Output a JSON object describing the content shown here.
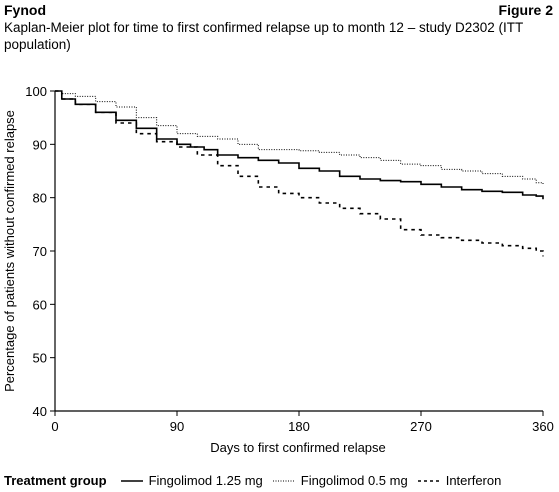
{
  "header": {
    "left": "Fynod",
    "right": "Figure 2"
  },
  "chart_data": {
    "type": "line",
    "title": "Kaplan-Meier plot for time to first confirmed relapse up to month 12 – study D2302 (ITT population)",
    "xlabel": "Days to first confirmed relapse",
    "ylabel": "Percentage of patients without confirmed relapse",
    "xlim": [
      0,
      360
    ],
    "ylim": [
      40,
      100
    ],
    "xticks": [
      0,
      90,
      180,
      270,
      360
    ],
    "yticks": [
      40,
      50,
      60,
      70,
      80,
      90,
      100
    ],
    "grid": false,
    "legend_title": "Treatment group",
    "legend_position": "bottom",
    "series": [
      {
        "name": "Fingolimod 1.25 mg",
        "style": "solid",
        "x": [
          0,
          5,
          15,
          30,
          45,
          60,
          75,
          90,
          100,
          110,
          120,
          135,
          150,
          165,
          180,
          195,
          210,
          225,
          240,
          255,
          270,
          285,
          300,
          315,
          330,
          345,
          355,
          360
        ],
        "y": [
          100,
          98.5,
          97.5,
          96,
          94.5,
          93,
          91,
          90,
          89.5,
          89,
          88,
          87.5,
          87,
          86.5,
          85.5,
          85,
          84,
          83.5,
          83.2,
          83,
          82.5,
          82,
          81.5,
          81.2,
          81,
          80.5,
          80.3,
          79.7
        ]
      },
      {
        "name": "Fingolimod 0.5 mg",
        "style": "dotted",
        "x": [
          0,
          5,
          15,
          30,
          45,
          60,
          75,
          90,
          105,
          120,
          135,
          150,
          165,
          180,
          195,
          210,
          225,
          240,
          255,
          270,
          285,
          300,
          315,
          330,
          345,
          355,
          360
        ],
        "y": [
          100,
          99.5,
          99,
          98,
          97,
          95,
          93.5,
          92,
          91.5,
          91,
          90,
          89,
          89,
          88.8,
          88.5,
          88,
          87.5,
          87,
          86.3,
          86,
          85.3,
          85,
          84.5,
          84,
          83.5,
          82.8,
          82.5
        ]
      },
      {
        "name": "Interferon",
        "style": "dashed",
        "x": [
          0,
          5,
          15,
          30,
          45,
          60,
          75,
          90,
          105,
          120,
          135,
          150,
          165,
          180,
          195,
          210,
          225,
          240,
          255,
          270,
          285,
          300,
          315,
          330,
          345,
          355,
          360
        ],
        "y": [
          100,
          98.5,
          97.5,
          96,
          94,
          92,
          90.5,
          89.5,
          88,
          86,
          84,
          82,
          80.8,
          80,
          79,
          78,
          77,
          76,
          74,
          73,
          72.5,
          72,
          71.5,
          71,
          70.5,
          70,
          69
        ]
      }
    ]
  }
}
